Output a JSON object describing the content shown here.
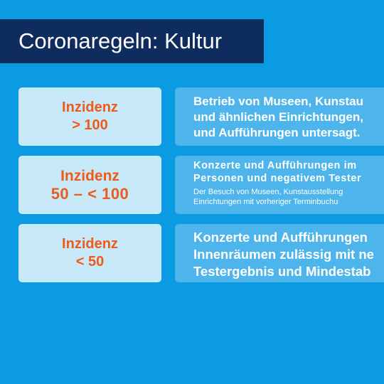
{
  "title": "Coronaregeln: Kultur",
  "rows": [
    {
      "incidence": [
        "Inzidenz",
        "> 100"
      ],
      "rule_main": [
        "Betrieb von Museen, Kunstau",
        "und ähnlichen Einrichtungen,",
        "und Aufführungen untersagt."
      ],
      "rule_detail": []
    },
    {
      "incidence": [
        "Inzidenz",
        "50 – < 100"
      ],
      "rule_main": [
        "Konzerte und Aufführungen im",
        "Personen und negativem Tester"
      ],
      "rule_detail": [
        "Der Besuch von Museen, Kunstausstellung",
        "Einrichtungen mit vorheriger Terminbuchu"
      ]
    },
    {
      "incidence": [
        "Inzidenz",
        "< 50"
      ],
      "rule_main": [
        "Konzerte und Aufführungen",
        "Innenräumen zulässig mit ne",
        "Testergebnis und Mindestab"
      ],
      "rule_detail": []
    }
  ],
  "colors": {
    "background": "#0a9be2",
    "title_bar": "#0f2c5e",
    "incidence_box": "#c7e9f8",
    "incidence_text": "#ee5a1c",
    "rule_box": "#4db5ec"
  }
}
